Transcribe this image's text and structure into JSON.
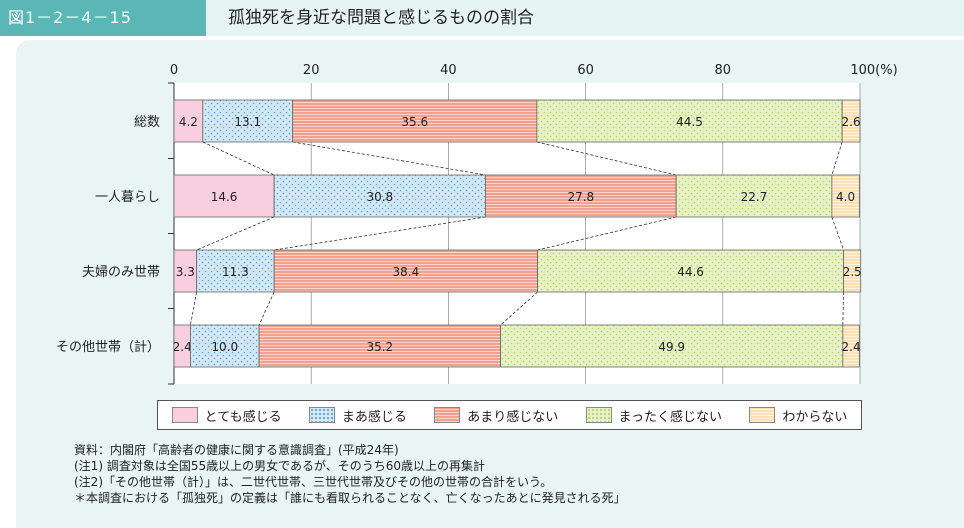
{
  "header": {
    "figure_number": "図1－2－4－15",
    "title": "孤独死を身近な問題と感じるものの割合"
  },
  "chart_data": {
    "type": "bar",
    "orientation": "horizontal",
    "stacked": true,
    "percent_stacked": true,
    "title": "孤独死を身近な問題と感じるものの割合",
    "categories": [
      "総数",
      "一人暮らし",
      "夫婦のみ世帯",
      "その他世帯（計）"
    ],
    "xlim": [
      0,
      100
    ],
    "x_ticks": [
      "0",
      "20",
      "40",
      "60",
      "80",
      "100(%)"
    ],
    "legend_position": "bottom",
    "series": [
      {
        "name": "とても感じる",
        "values": [
          4.2,
          14.6,
          3.3,
          2.4
        ],
        "color": "#f9cfe0",
        "pattern": "solid"
      },
      {
        "name": "まあ感じる",
        "values": [
          13.1,
          30.8,
          11.3,
          10.0
        ],
        "color": "#d3e8f7",
        "pattern": "dots"
      },
      {
        "name": "あまり感じない",
        "values": [
          35.6,
          27.8,
          38.4,
          35.2
        ],
        "color": "#f4a08f",
        "pattern": "stripes"
      },
      {
        "name": "まったく感じない",
        "values": [
          44.5,
          22.7,
          44.6,
          49.9
        ],
        "color": "#e6f1c4",
        "pattern": "dots"
      },
      {
        "name": "わからない",
        "values": [
          2.6,
          4.0,
          2.5,
          2.4
        ],
        "color": "#fde0b6",
        "pattern": "stripes"
      }
    ],
    "value_labels": [
      [
        "4.2",
        "13.1",
        "35.6",
        "44.5",
        "2.6"
      ],
      [
        "14.6",
        "30.8",
        "27.8",
        "22.7",
        "4.0"
      ],
      [
        "3.3",
        "11.3",
        "38.4",
        "44.6",
        "2.5"
      ],
      [
        "2.4",
        "10.0",
        "35.2",
        "49.9",
        "2.4"
      ]
    ],
    "grid": true
  },
  "notes": [
    "資料：内閣府「高齢者の健康に関する意識調査」(平成24年)",
    "(注1) 調査対象は全国55歳以上の男女であるが、そのうち60歳以上の再集計",
    "(注2)「その他世帯（計）」は、二世代世帯、三世代世帯及びその他の世帯の合計をいう。",
    "＊本調査における「孤独死」の定義は「誰にも看取られることなく、亡くなったあとに発見される死」"
  ]
}
